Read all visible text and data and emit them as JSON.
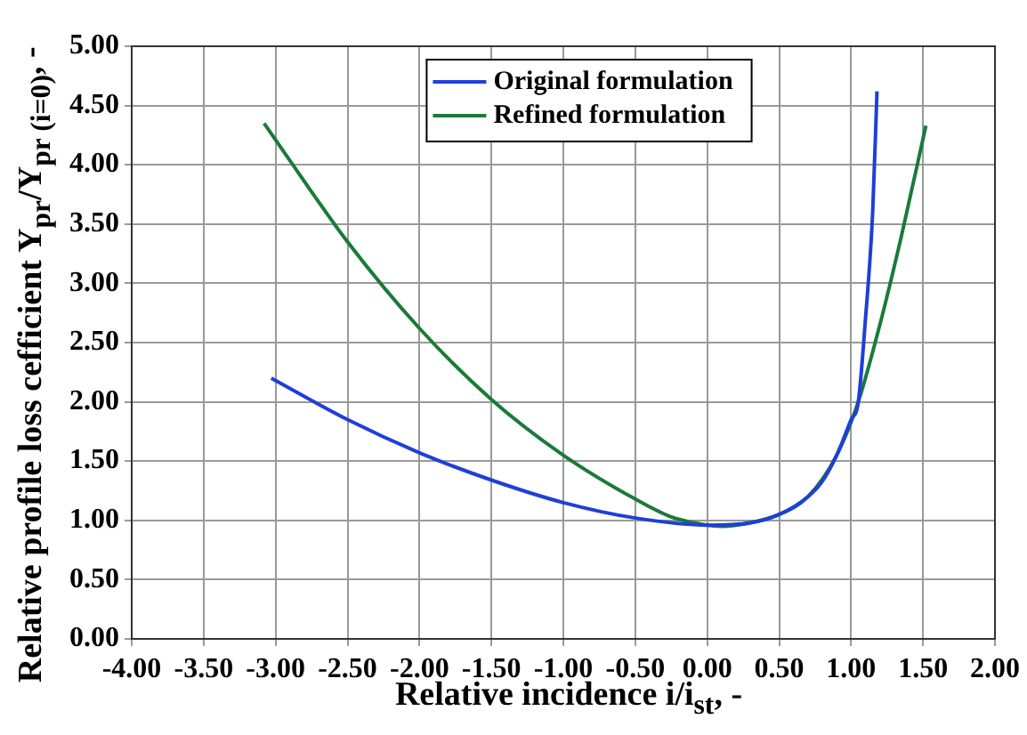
{
  "chart_data": {
    "type": "line",
    "xlabel": "Relative incidence i/i$_{st}$, -",
    "ylabel": "Relative profile loss cefficient Y$_{pr}$/Y$_{pr (i=0)}$, -",
    "xlim": [
      -4,
      2
    ],
    "xticks": [
      {
        "value": -4,
        "label": "-4.00"
      },
      {
        "value": -3.5,
        "label": "-3.50"
      },
      {
        "value": -3,
        "label": "-3.00"
      },
      {
        "value": -2.5,
        "label": "-2.50"
      },
      {
        "value": -2,
        "label": "-2.00"
      },
      {
        "value": -1.5,
        "label": "-1.50"
      },
      {
        "value": -1,
        "label": "-1.00"
      },
      {
        "value": -0.5,
        "label": "-0.50"
      },
      {
        "value": 0,
        "label": "0.00"
      },
      {
        "value": 0.5,
        "label": "0.50"
      },
      {
        "value": 1,
        "label": "1.00"
      },
      {
        "value": 1.5,
        "label": "1.50"
      },
      {
        "value": 2,
        "label": "2.00"
      }
    ],
    "ylim": [
      0,
      5
    ],
    "yticks": [
      {
        "value": 0,
        "label": "0.00"
      },
      {
        "value": 0.5,
        "label": "0.50"
      },
      {
        "value": 1,
        "label": "1.00"
      },
      {
        "value": 1.5,
        "label": "1.50"
      },
      {
        "value": 2,
        "label": "2.00"
      },
      {
        "value": 2.5,
        "label": "2.50"
      },
      {
        "value": 3,
        "label": "3.00"
      },
      {
        "value": 3.5,
        "label": "3.50"
      },
      {
        "value": 4,
        "label": "4.00"
      },
      {
        "value": 4.5,
        "label": "4.50"
      },
      {
        "value": 5,
        "label": "5.00"
      }
    ],
    "grid": true,
    "legend": "top",
    "marker": "none",
    "line_style": "solid",
    "series": [
      {
        "name": "Original formulation",
        "color": "#1f3fd8",
        "x": [
          -3.03,
          -2.5,
          -2,
          -1.5,
          -1,
          -0.5,
          0,
          0.3,
          0.5,
          0.7,
          0.8,
          0.9,
          1,
          1.05,
          1.1,
          1.15,
          1.18
        ],
        "values": [
          2.2,
          1.85,
          1.57,
          1.34,
          1.15,
          1.02,
          0.96,
          0.98,
          1.05,
          1.2,
          1.33,
          1.55,
          1.85,
          2,
          2.7,
          3.6,
          4.62
        ]
      },
      {
        "name": "Refined formulation",
        "color": "#1a7a3a",
        "x": [
          -3.08,
          -2.5,
          -2,
          -1.5,
          -1,
          -0.5,
          -0.25,
          0,
          0.1,
          0.3,
          0.5,
          0.7,
          0.9,
          1.05,
          1.2,
          1.35,
          1.52
        ],
        "values": [
          4.35,
          3.35,
          2.62,
          2.02,
          1.55,
          1.18,
          1.03,
          0.96,
          0.95,
          0.98,
          1.05,
          1.2,
          1.55,
          2,
          2.65,
          3.4,
          4.33
        ]
      }
    ]
  }
}
